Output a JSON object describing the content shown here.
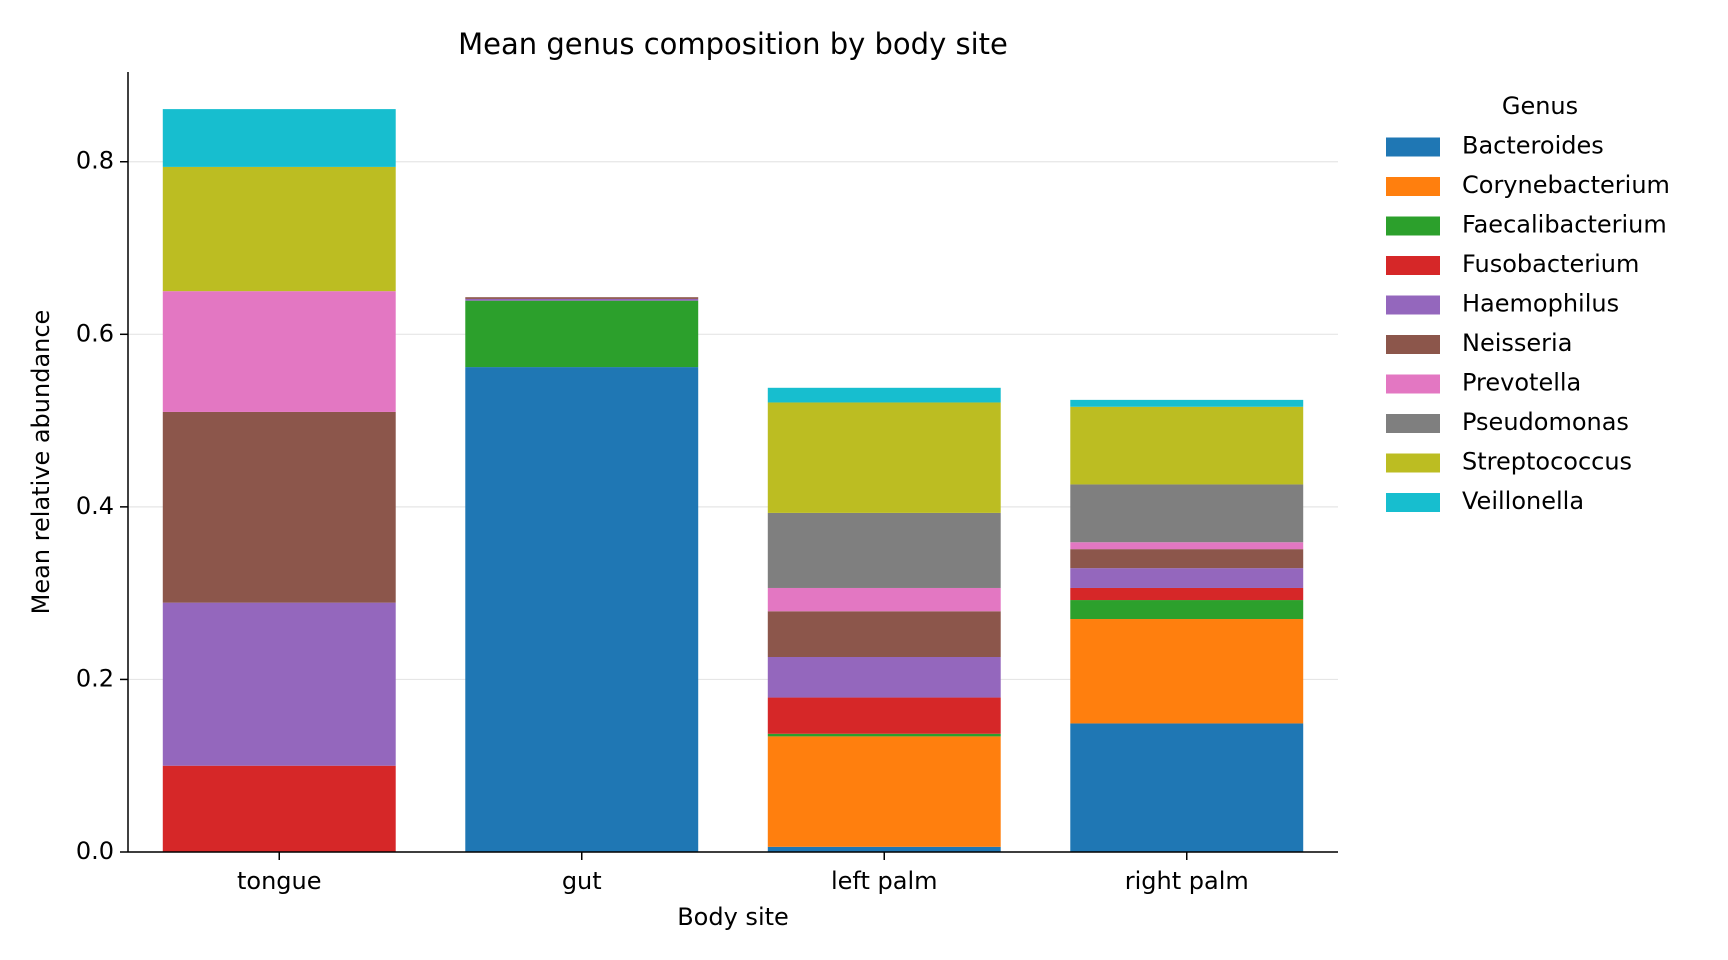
{
  "chart_data": {
    "type": "stacked_bar",
    "title": "Mean genus composition by body site",
    "x_label": "Body site",
    "y_label": "Mean relative abundance",
    "categories": [
      "tongue",
      "gut",
      "left palm",
      "right palm"
    ],
    "legend_title": "Genus",
    "legend": "right",
    "grid": true,
    "ylim": [
      0,
      0.904
    ],
    "yticks": [
      0.0,
      0.2,
      0.4,
      0.6,
      0.8
    ],
    "series": [
      {
        "name": "Bacteroides",
        "color": "#1f77b4",
        "values": [
          0,
          0.562,
          0.006,
          0.149
        ]
      },
      {
        "name": "Corynebacterium",
        "color": "#ff7f0e",
        "values": [
          0,
          0,
          0.128,
          0.121
        ]
      },
      {
        "name": "Faecalibacterium",
        "color": "#2ca02c",
        "values": [
          0,
          0.077,
          0.003,
          0.022
        ]
      },
      {
        "name": "Fusobacterium",
        "color": "#d62728",
        "values": [
          0.1,
          0,
          0.042,
          0.014
        ]
      },
      {
        "name": "Haemophilus",
        "color": "#9467bd",
        "values": [
          0.189,
          0.002,
          0.047,
          0.023
        ]
      },
      {
        "name": "Neisseria",
        "color": "#8c564b",
        "values": [
          0.221,
          0.002,
          0.053,
          0.022
        ]
      },
      {
        "name": "Prevotella",
        "color": "#e377c2",
        "values": [
          0.14,
          0,
          0.027,
          0.008
        ]
      },
      {
        "name": "Pseudomonas",
        "color": "#7f7f7f",
        "values": [
          0,
          0,
          0.087,
          0.067
        ]
      },
      {
        "name": "Streptococcus",
        "color": "#bcbd22",
        "values": [
          0.144,
          0,
          0.128,
          0.09
        ]
      },
      {
        "name": "Veillonella",
        "color": "#17becf",
        "values": [
          0.067,
          0,
          0.017,
          0.008
        ]
      }
    ]
  }
}
